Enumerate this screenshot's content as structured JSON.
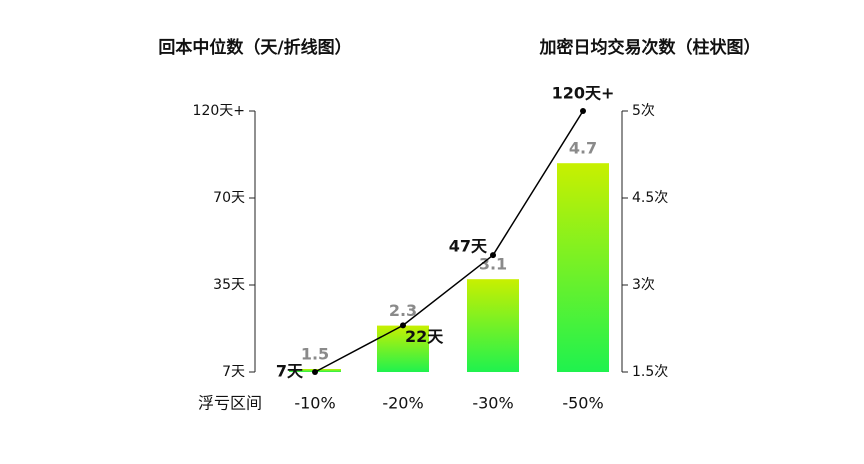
{
  "chart_data": {
    "type": "combo",
    "y_label": "回本中位数（天/折线图）",
    "y2_label": "加密日均交易次数（柱状图）",
    "x_label": "浮亏区间",
    "categories": [
      "-10%",
      "-20%",
      "-30%",
      "-50%"
    ],
    "ylim": [
      7,
      120
    ],
    "yticks": [
      {
        "value": 7,
        "label": "7天"
      },
      {
        "value": 35,
        "label": "35天"
      },
      {
        "value": 70,
        "label": "70天"
      },
      {
        "value": 120,
        "label": "120天+"
      }
    ],
    "y2lim": [
      1.5,
      5
    ],
    "y2ticks": [
      {
        "value": 1.5,
        "label": "1.5次"
      },
      {
        "value": 3,
        "label": "3次"
      },
      {
        "value": 4.5,
        "label": "4.5次"
      },
      {
        "value": 5,
        "label": "5次"
      }
    ],
    "series": [
      {
        "type": "bar",
        "axis": "y2",
        "colors": [
          "#c8f000",
          "#1ff24e"
        ],
        "label_color": "#8a8a8a",
        "values": [
          1.5,
          2.3,
          3.1,
          4.7
        ]
      },
      {
        "type": "line",
        "color": "#000000",
        "values": [
          7,
          22,
          47,
          120
        ],
        "value_labels": [
          "7天",
          "22天",
          "47天",
          "120天+"
        ]
      }
    ]
  }
}
